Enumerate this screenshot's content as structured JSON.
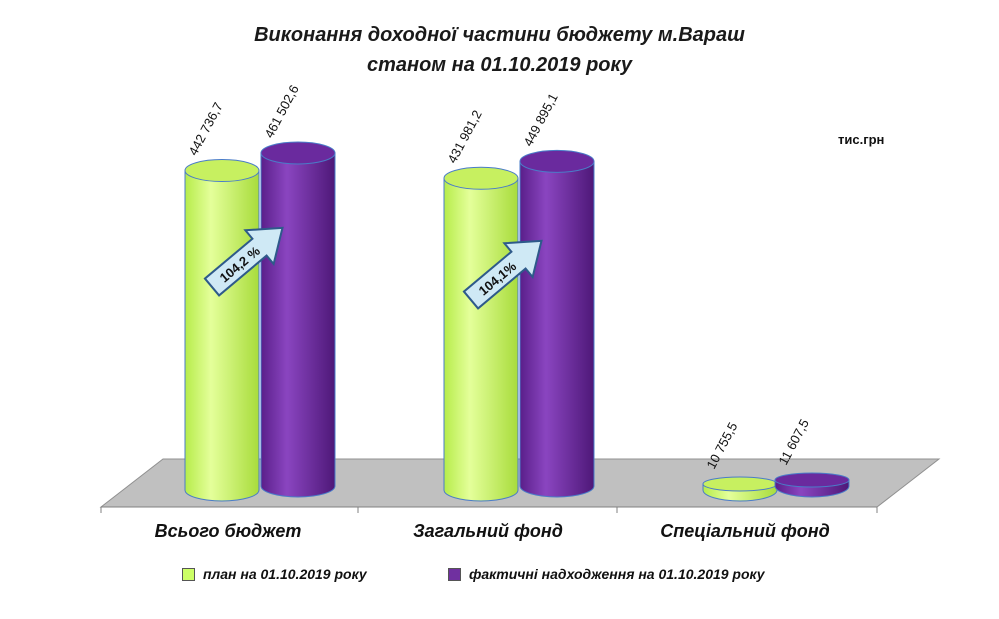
{
  "chart_data": {
    "type": "bar",
    "title_line1": "Виконання доходної частини бюджету м.Вараш",
    "title_line2": "станом на 01.10.2019 року",
    "unit": "тис.грн",
    "categories": [
      "Всього бюджет",
      "Загальний фонд",
      "Спеціальний фонд"
    ],
    "series": [
      {
        "name": "план на 01.10.2019 року",
        "values": [
          442736.7,
          431981.2,
          10755.5
        ],
        "labels": [
          "442 736,7",
          "431 981,2",
          "10 755,5"
        ],
        "color": "#ccff66"
      },
      {
        "name": "фактичні надходження на 01.10.2019 року",
        "values": [
          461502.6,
          449895.1,
          11607.5
        ],
        "labels": [
          "461 502,6",
          "449 895,1",
          "11 607,5"
        ],
        "color": "#7030a0"
      }
    ],
    "percent_labels": [
      "104,2 %",
      "104,1%"
    ],
    "legend_position": "bottom",
    "grid": false
  }
}
